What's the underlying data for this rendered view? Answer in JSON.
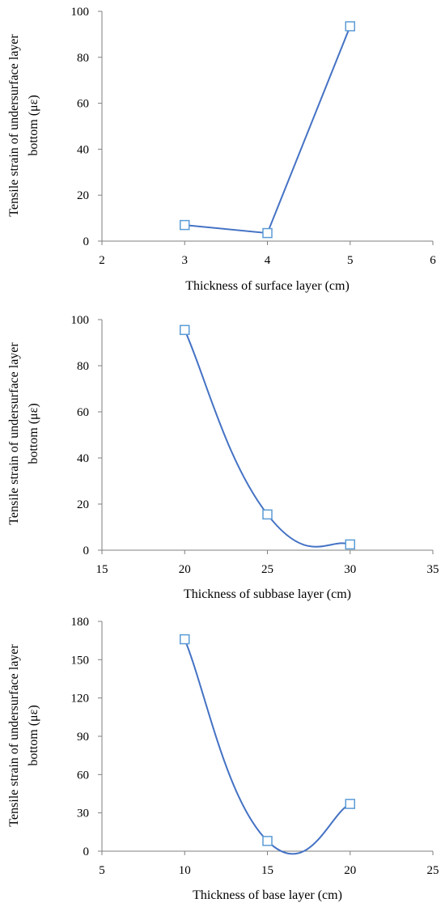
{
  "chart_data": [
    {
      "type": "line",
      "smooth": false,
      "x": [
        3,
        4,
        5
      ],
      "series": [
        {
          "values": [
            7,
            3.5,
            93.5
          ]
        }
      ],
      "xlabel": "Thickness of surface layer (cm)",
      "ylabel": "Tensile strain of undersurface layer bottom (με)",
      "ylabel_lines": [
        "Tensile strain of undersurface layer",
        "bottom (με)"
      ],
      "xlim": [
        2,
        6
      ],
      "ylim": [
        0,
        100
      ],
      "xticks": [
        2,
        3,
        4,
        5,
        6
      ],
      "yticks": [
        0,
        20,
        40,
        60,
        80,
        100
      ],
      "grid": false,
      "marker": "open-square",
      "line_color": "#4472c4",
      "marker_color": "#5b9bd5"
    },
    {
      "type": "line",
      "smooth": true,
      "x": [
        20,
        25,
        30
      ],
      "series": [
        {
          "values": [
            95.5,
            15.5,
            2.5
          ]
        }
      ],
      "xlabel": "Thickness of subbase layer (cm)",
      "ylabel": "Tensile strain of undersurface layer bottom (με)",
      "ylabel_lines": [
        "Tensile strain of undersurface layer",
        "bottom (με)"
      ],
      "xlim": [
        15,
        35
      ],
      "ylim": [
        0,
        100
      ],
      "xticks": [
        15,
        20,
        25,
        30,
        35
      ],
      "yticks": [
        0,
        20,
        40,
        60,
        80,
        100
      ],
      "grid": false,
      "marker": "open-square",
      "line_color": "#4472c4",
      "marker_color": "#5b9bd5"
    },
    {
      "type": "line",
      "smooth": true,
      "x": [
        10,
        15,
        20
      ],
      "series": [
        {
          "values": [
            166,
            8,
            37
          ]
        }
      ],
      "xlabel": "Thickness of base layer (cm)",
      "ylabel": "Tensile strain of undersurface layer bottom (με)",
      "ylabel_lines": [
        "Tensile strain of undersurface layer",
        "bottom (με)"
      ],
      "xlim": [
        5,
        25
      ],
      "ylim": [
        0,
        180
      ],
      "xticks": [
        5,
        10,
        15,
        20,
        25
      ],
      "yticks": [
        0,
        30,
        60,
        90,
        120,
        150,
        180
      ],
      "grid": false,
      "marker": "open-square",
      "line_color": "#4472c4",
      "marker_color": "#5b9bd5"
    }
  ]
}
